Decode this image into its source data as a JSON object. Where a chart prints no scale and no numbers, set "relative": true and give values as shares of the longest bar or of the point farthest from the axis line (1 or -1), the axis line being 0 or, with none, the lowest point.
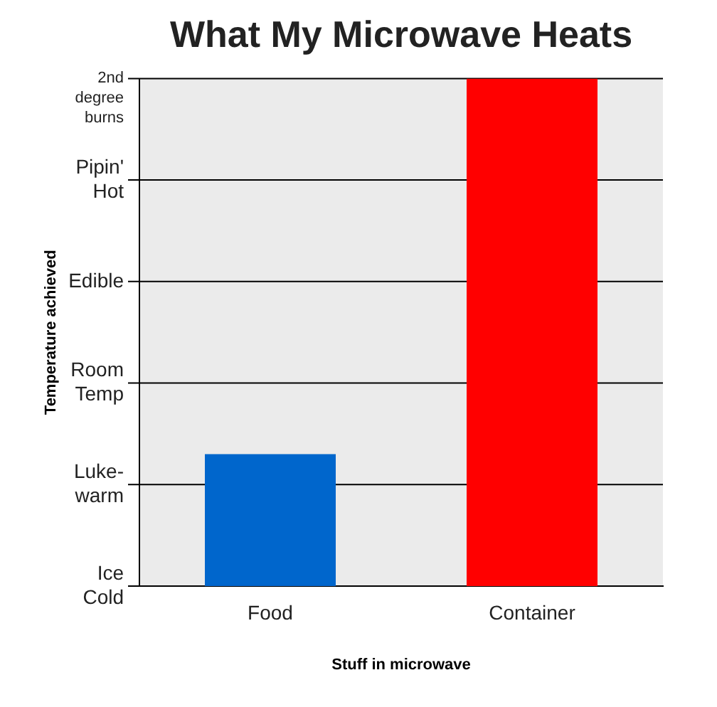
{
  "chart_data": {
    "type": "bar",
    "title": "What My Microwave Heats",
    "xlabel": "Stuff in microwave",
    "ylabel": "Temperature achieved",
    "categories": [
      "Food",
      "Container"
    ],
    "values": [
      0.26,
      1
    ],
    "colors": [
      "#0066cc",
      "#ff0000"
    ],
    "relative": true,
    "annotations": [
      "Ice Cold",
      "Luke-warm",
      "Room Temp",
      "Edible",
      "Pipin' Hot",
      "2nd degree burns"
    ],
    "grid": "y"
  }
}
